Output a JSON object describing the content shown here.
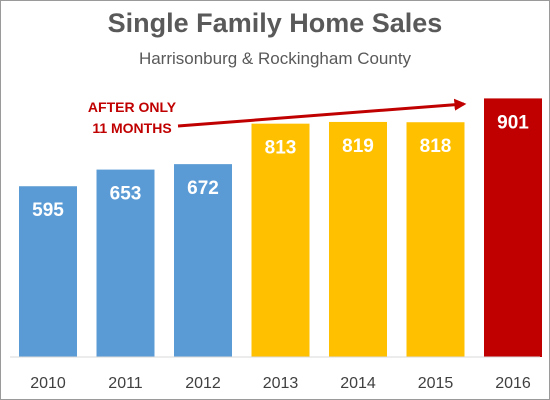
{
  "chart_data": {
    "type": "bar",
    "title": "Single Family Home Sales",
    "subtitle": "Harrisonburg & Rockingham County",
    "categories": [
      "2010",
      "2011",
      "2012",
      "2013",
      "2014",
      "2015",
      "2016"
    ],
    "values": [
      595,
      653,
      672,
      813,
      819,
      818,
      901
    ],
    "value_labels": [
      "595",
      "653",
      "672",
      "813",
      "819",
      "818",
      "901"
    ],
    "bar_colors": [
      "#5b9bd5",
      "#5b9bd5",
      "#5b9bd5",
      "#ffc000",
      "#ffc000",
      "#ffc000",
      "#c00000"
    ],
    "ylim": [
      0,
      1000
    ],
    "grid": false,
    "legend": "none",
    "xlabel": "",
    "ylabel": "",
    "annotation": {
      "lines": [
        "AFTER ONLY",
        "11 MONTHS"
      ],
      "color": "#c00000",
      "points_to": "2016"
    }
  }
}
